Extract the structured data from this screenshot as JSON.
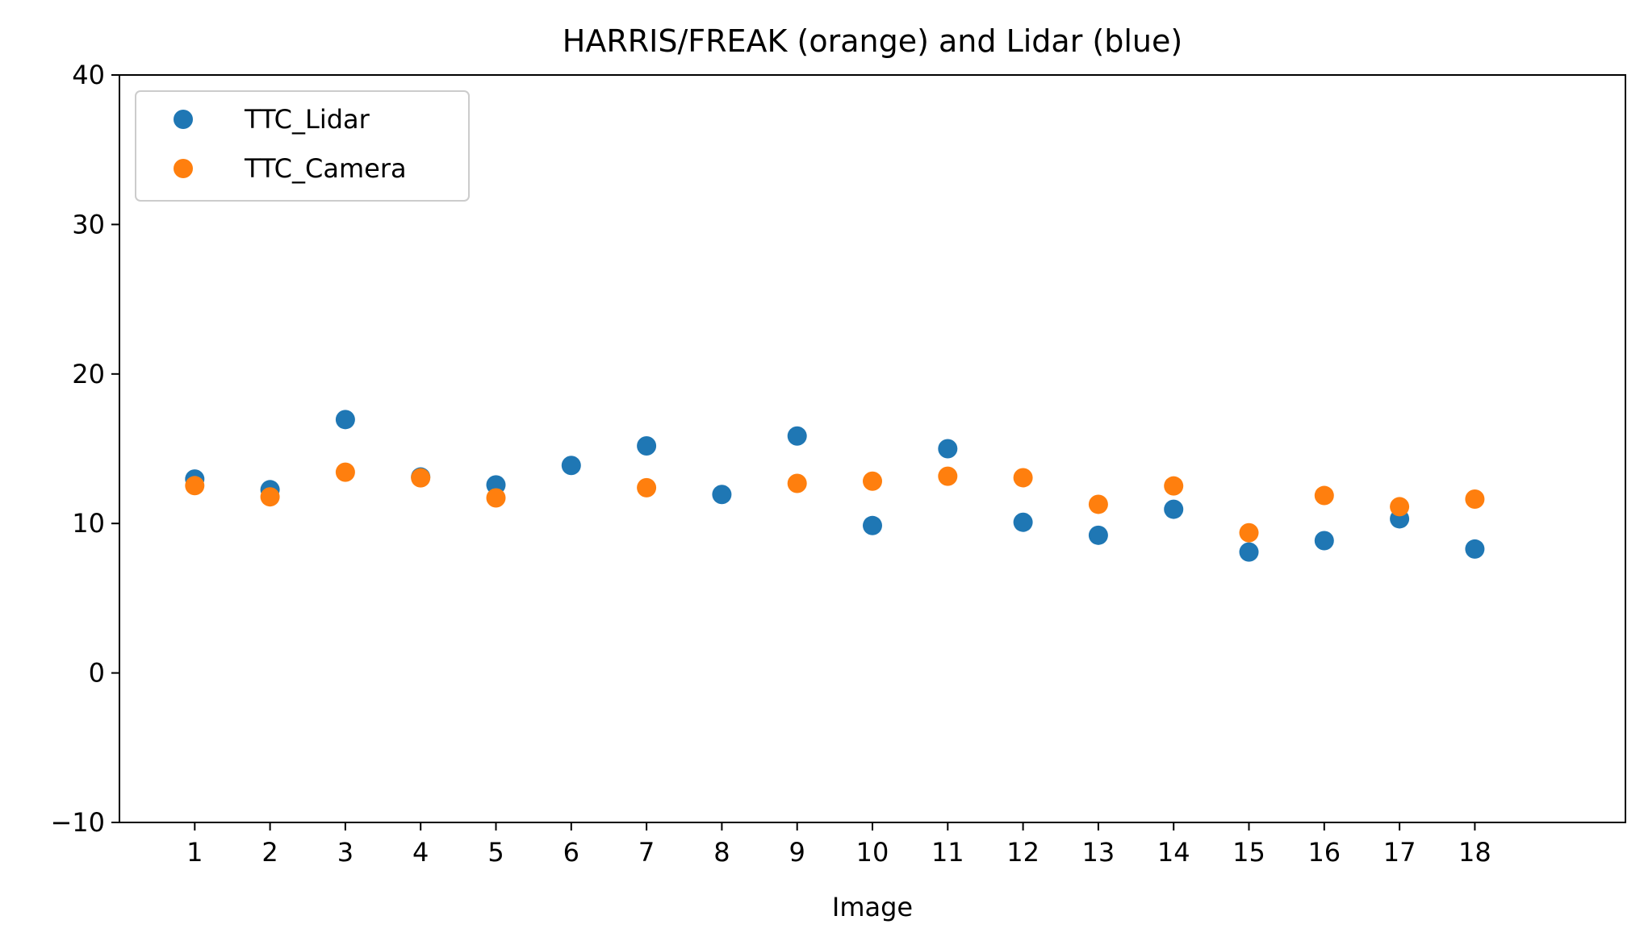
{
  "chart_data": {
    "type": "scatter",
    "title": "HARRIS/FREAK (orange) and Lidar (blue)",
    "xlabel": "Image",
    "ylabel": "",
    "xlim": [
      0,
      20
    ],
    "ylim": [
      -10,
      40
    ],
    "x_ticks": [
      1,
      2,
      3,
      4,
      5,
      6,
      7,
      8,
      9,
      10,
      11,
      12,
      13,
      14,
      15,
      16,
      17,
      18
    ],
    "y_ticks": [
      -10,
      0,
      10,
      20,
      30,
      40
    ],
    "x_tick_labels": [
      "1",
      "2",
      "3",
      "4",
      "5",
      "6",
      "7",
      "8",
      "9",
      "10",
      "11",
      "12",
      "13",
      "14",
      "15",
      "16",
      "17",
      "18"
    ],
    "y_tick_labels": [
      "−10",
      "0",
      "10",
      "20",
      "30",
      "40"
    ],
    "grid": false,
    "legend_position": "top-left",
    "series": [
      {
        "name": "TTC_Lidar",
        "color": "#1f77b4",
        "x": [
          1,
          2,
          3,
          4,
          5,
          6,
          7,
          8,
          9,
          10,
          11,
          12,
          13,
          14,
          15,
          16,
          17,
          18
        ],
        "y": [
          12.97,
          12.26,
          16.95,
          13.11,
          12.58,
          13.88,
          15.19,
          11.94,
          15.85,
          9.86,
          15.0,
          10.08,
          9.21,
          10.95,
          8.09,
          8.85,
          10.31,
          8.29
        ]
      },
      {
        "name": "TTC_Camera",
        "color": "#ff7f0e",
        "x": [
          1,
          2,
          3,
          4,
          5,
          6,
          7,
          8,
          9,
          10,
          11,
          12,
          13,
          14,
          15,
          16,
          17,
          18
        ],
        "y": [
          12.53,
          11.78,
          13.43,
          13.05,
          11.71,
          null,
          12.39,
          null,
          12.68,
          12.83,
          13.16,
          13.06,
          11.28,
          12.51,
          9.38,
          11.87,
          11.12,
          11.63
        ]
      }
    ]
  }
}
